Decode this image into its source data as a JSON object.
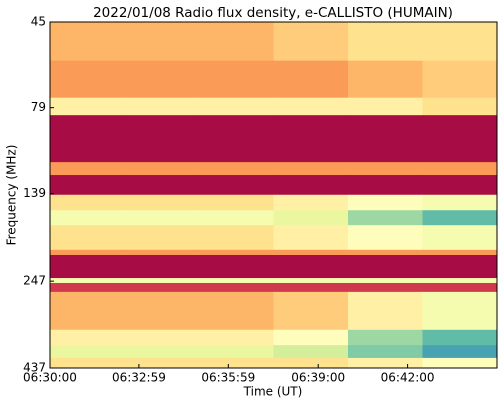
{
  "chart_data": {
    "type": "heatmap",
    "title": "2022/01/08  Radio flux density, e-CALLISTO (HUMAIN)",
    "x_label": "Time (UT)",
    "y_label": "Frequency (MHz)",
    "xlim": [
      23400,
      24300
    ],
    "xticks": [
      {
        "value": 23400,
        "label": "06:30:00"
      },
      {
        "value": 23579,
        "label": "06:32:59"
      },
      {
        "value": 23759,
        "label": "06:35:59"
      },
      {
        "value": 23940,
        "label": "06:39:00"
      },
      {
        "value": 24120,
        "label": "06:42:00"
      }
    ],
    "ylim": [
      437,
      45
    ],
    "yscale": "log",
    "yticks": [
      45,
      79,
      139,
      247,
      437
    ],
    "x_edges": [
      23400,
      23550,
      23700,
      23850,
      24000,
      24150,
      24300
    ],
    "y_edges": [
      45,
      58,
      74,
      83,
      113,
      123,
      140,
      155,
      171,
      201,
      208,
      242,
      250,
      265,
      340,
      376,
      409,
      437
    ],
    "zlim": [
      0,
      1
    ],
    "colormap": [
      "#9e0142",
      "#d53e4f",
      "#f46d43",
      "#fdae61",
      "#fee08b",
      "#ffffbf",
      "#e6f598",
      "#abdda4",
      "#66c2a5",
      "#3288bd"
    ],
    "z": [
      [
        0.35,
        0.35,
        0.35,
        0.4,
        0.45,
        0.45
      ],
      [
        0.3,
        0.3,
        0.3,
        0.3,
        0.35,
        0.4
      ],
      [
        0.5,
        0.5,
        0.5,
        0.5,
        0.5,
        0.45
      ],
      [
        0.02,
        0.02,
        0.02,
        0.02,
        0.02,
        0.02
      ],
      [
        0.3,
        0.3,
        0.3,
        0.3,
        0.3,
        0.3
      ],
      [
        0.02,
        0.02,
        0.02,
        0.02,
        0.02,
        0.02
      ],
      [
        0.45,
        0.45,
        0.45,
        0.5,
        0.55,
        0.6
      ],
      [
        0.6,
        0.6,
        0.6,
        0.65,
        0.8,
        0.9
      ],
      [
        0.45,
        0.45,
        0.45,
        0.5,
        0.55,
        0.6
      ],
      [
        0.3,
        0.3,
        0.3,
        0.3,
        0.3,
        0.3
      ],
      [
        0.02,
        0.02,
        0.02,
        0.02,
        0.02,
        0.02
      ],
      [
        0.6,
        0.6,
        0.6,
        0.6,
        0.6,
        0.6
      ],
      [
        0.1,
        0.1,
        0.1,
        0.1,
        0.1,
        0.1
      ],
      [
        0.35,
        0.35,
        0.35,
        0.4,
        0.5,
        0.6
      ],
      [
        0.5,
        0.5,
        0.5,
        0.55,
        0.8,
        0.9
      ],
      [
        0.65,
        0.65,
        0.65,
        0.7,
        0.85,
        0.95
      ],
      [
        0.45,
        0.45,
        0.45,
        0.45,
        0.5,
        0.55
      ]
    ]
  }
}
